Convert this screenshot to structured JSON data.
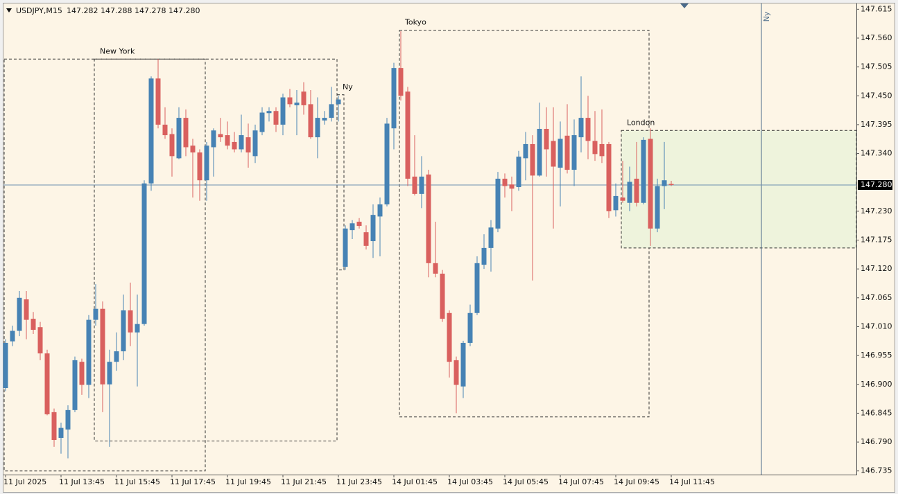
{
  "chart_data": {
    "type": "candlestick",
    "symbol": "USDJPY,M15",
    "info": "147.282 147.288 147.278 147.280",
    "categories": [
      "11 Jul 2025",
      null,
      null,
      null,
      null,
      null,
      null,
      null,
      "11 Jul 13:45",
      null,
      null,
      null,
      null,
      null,
      null,
      null,
      "11 Jul 15:45",
      null,
      null,
      null,
      null,
      null,
      null,
      null,
      "11 Jul 17:45",
      null,
      null,
      null,
      null,
      null,
      null,
      null,
      "11 Jul 19:45",
      null,
      null,
      null,
      null,
      null,
      null,
      null,
      "11 Jul 21:45",
      null,
      null,
      null,
      null,
      null,
      null,
      null,
      "11 Jul 23:45",
      null,
      null,
      null,
      null,
      null,
      null,
      null,
      "14 Jul 01:45",
      null,
      null,
      null,
      null,
      null,
      null,
      null,
      "14 Jul 03:45",
      null,
      null,
      null,
      null,
      null,
      null,
      null,
      "14 Jul 05:45",
      null,
      null,
      null,
      null,
      null,
      null,
      null,
      "14 Jul 07:45",
      null,
      null,
      null,
      null,
      null,
      null,
      null,
      "14 Jul 09:45",
      null,
      null,
      null,
      null,
      null,
      null,
      null,
      "14 Jul 11:45"
    ],
    "open": [
      146.893,
      146.982,
      147.002,
      147.062,
      147.025,
      147.009,
      146.959,
      146.847,
      146.798,
      146.814,
      146.851,
      146.943,
      146.899,
      147.023,
      147.044,
      146.9,
      146.943,
      146.963,
      147.041,
      146.999,
      147.015,
      147.283,
      147.483,
      147.395,
      147.377,
      147.331,
      147.408,
      147.355,
      147.342,
      147.289,
      147.352,
      147.377,
      147.375,
      147.362,
      147.348,
      147.371,
      147.335,
      147.381,
      147.417,
      147.421,
      147.395,
      147.447,
      147.432,
      147.458,
      147.434,
      147.371,
      147.403,
      147.408,
      147.434,
      147.124,
      147.194,
      147.21,
      147.19,
      147.173,
      147.22,
      147.243,
      147.388,
      147.503,
      147.458,
      147.296,
      147.263,
      147.3,
      147.131,
      147.111,
      147.036,
      146.946,
      146.896,
      146.979,
      147.036,
      147.128,
      147.16,
      147.197,
      147.292,
      147.281,
      147.276,
      147.331,
      147.358,
      147.298,
      147.387,
      147.364,
      147.313,
      147.374,
      147.309,
      147.371,
      147.408,
      147.364,
      147.358,
      147.358,
      147.232,
      147.256,
      147.246,
      147.292,
      147.246,
      147.368,
      147.197,
      147.278,
      147.282
    ],
    "high": [
      146.986,
      147.012,
      147.078,
      147.078,
      147.038,
      147.019,
      146.966,
      146.854,
      146.827,
      146.86,
      146.953,
      146.949,
      147.032,
      147.091,
      147.058,
      146.966,
      146.999,
      147.071,
      147.094,
      147.071,
      147.289,
      147.487,
      147.52,
      147.428,
      147.388,
      147.428,
      147.424,
      147.368,
      147.348,
      147.362,
      147.388,
      147.408,
      147.401,
      147.381,
      147.414,
      147.397,
      147.395,
      147.428,
      147.428,
      147.428,
      147.454,
      147.463,
      147.461,
      147.476,
      147.461,
      147.447,
      147.421,
      147.467,
      147.45,
      147.203,
      147.213,
      147.217,
      147.203,
      147.243,
      147.256,
      147.408,
      147.513,
      147.573,
      147.467,
      147.375,
      147.335,
      147.309,
      147.21,
      147.118,
      147.041,
      146.953,
      146.983,
      147.052,
      147.144,
      147.186,
      147.213,
      147.305,
      147.302,
      147.296,
      147.345,
      147.381,
      147.375,
      147.437,
      147.428,
      147.428,
      147.401,
      147.434,
      147.405,
      147.487,
      147.45,
      147.421,
      147.424,
      147.362,
      147.283,
      147.326,
      147.315,
      147.362,
      147.371,
      147.388,
      147.292,
      147.362,
      147.288
    ],
    "low": [
      146.887,
      146.973,
      146.992,
      146.986,
      146.996,
      146.946,
      146.841,
      146.781,
      146.768,
      146.759,
      146.847,
      146.88,
      146.874,
      147.012,
      146.847,
      146.781,
      146.926,
      146.946,
      146.973,
      146.896,
      147.012,
      147.269,
      147.388,
      147.368,
      147.296,
      147.329,
      147.335,
      147.256,
      147.25,
      147.25,
      147.296,
      147.362,
      147.348,
      147.342,
      147.342,
      147.313,
      147.322,
      147.375,
      147.401,
      147.381,
      147.375,
      147.428,
      147.375,
      147.414,
      147.368,
      147.331,
      147.395,
      147.401,
      147.401,
      147.118,
      147.177,
      147.197,
      147.157,
      147.141,
      147.144,
      147.239,
      147.348,
      147.441,
      147.278,
      147.26,
      147.236,
      147.104,
      147.104,
      147.019,
      146.913,
      146.845,
      146.874,
      146.973,
      147.032,
      147.12,
      147.115,
      147.19,
      147.256,
      147.23,
      147.269,
      147.289,
      147.098,
      147.296,
      147.296,
      147.197,
      147.239,
      147.302,
      147.278,
      147.342,
      147.329,
      147.326,
      147.322,
      147.217,
      147.22,
      147.246,
      147.23,
      147.239,
      147.243,
      147.164,
      147.19,
      147.234,
      147.278
    ],
    "close": [
      146.979,
      147.002,
      147.065,
      147.023,
      147.004,
      146.959,
      146.843,
      146.794,
      146.817,
      146.851,
      146.946,
      146.899,
      147.023,
      147.044,
      146.9,
      146.943,
      146.963,
      147.041,
      146.999,
      147.015,
      147.283,
      147.483,
      147.395,
      147.375,
      147.335,
      147.408,
      147.352,
      147.342,
      147.289,
      147.355,
      147.384,
      147.371,
      147.355,
      147.348,
      147.375,
      147.342,
      147.384,
      147.418,
      147.421,
      147.395,
      147.447,
      147.434,
      147.437,
      147.432,
      147.371,
      147.408,
      147.408,
      147.434,
      147.443,
      147.197,
      147.207,
      147.202,
      147.164,
      147.223,
      147.243,
      147.397,
      147.503,
      147.45,
      147.292,
      147.263,
      147.296,
      147.131,
      147.111,
      147.025,
      146.943,
      146.899,
      146.979,
      147.036,
      147.131,
      147.16,
      147.199,
      147.292,
      147.278,
      147.273,
      147.334,
      147.358,
      147.298,
      147.387,
      147.348,
      147.315,
      147.368,
      147.309,
      147.375,
      147.408,
      147.364,
      147.339,
      147.335,
      147.23,
      147.259,
      147.25,
      147.286,
      147.246,
      147.366,
      147.197,
      147.278,
      147.289,
      147.28
    ],
    "up_color": "#4682b4",
    "down_color": "#d9605e",
    "xlim": [
      -0.3,
      122.7
    ],
    "ylim": [
      146.728,
      147.626
    ],
    "yticks": [
      147.615,
      {
        "value": 147.56,
        "label": "147.560"
      },
      147.505,
      {
        "value": 147.45,
        "label": "147.450"
      },
      147.395,
      {
        "value": 147.34,
        "label": "147.340"
      },
      {
        "value": 147.23,
        "label": "147.230"
      },
      147.175,
      {
        "value": 147.12,
        "label": "147.120"
      },
      147.065,
      {
        "value": 147.01,
        "label": "147.010"
      },
      146.955,
      {
        "value": 146.9,
        "label": "146.900"
      },
      146.845,
      {
        "value": 146.79,
        "label": "146.790"
      },
      146.735
    ],
    "current_price": {
      "value": 147.28,
      "label": "147.280"
    },
    "sessions": [
      {
        "start": 0,
        "end": 29,
        "high": 147.52,
        "low": 146.735
      },
      {
        "name": "New York",
        "start": 13,
        "end": 48,
        "high": 147.52,
        "low": 146.792
      },
      {
        "name": "Ny",
        "start": 48,
        "end": 49,
        "high": 147.452,
        "low": 147.118
      },
      {
        "name": "Tokyo",
        "start": 57,
        "end": 93,
        "high": 147.575,
        "low": 146.838
      },
      {
        "name": "London",
        "start": 89,
        "high": 147.384,
        "low": 147.16,
        "fill": "#eef3dc"
      }
    ],
    "vline": {
      "label": "Ny",
      "at": 109,
      "color": "#4a6a8a"
    }
  }
}
